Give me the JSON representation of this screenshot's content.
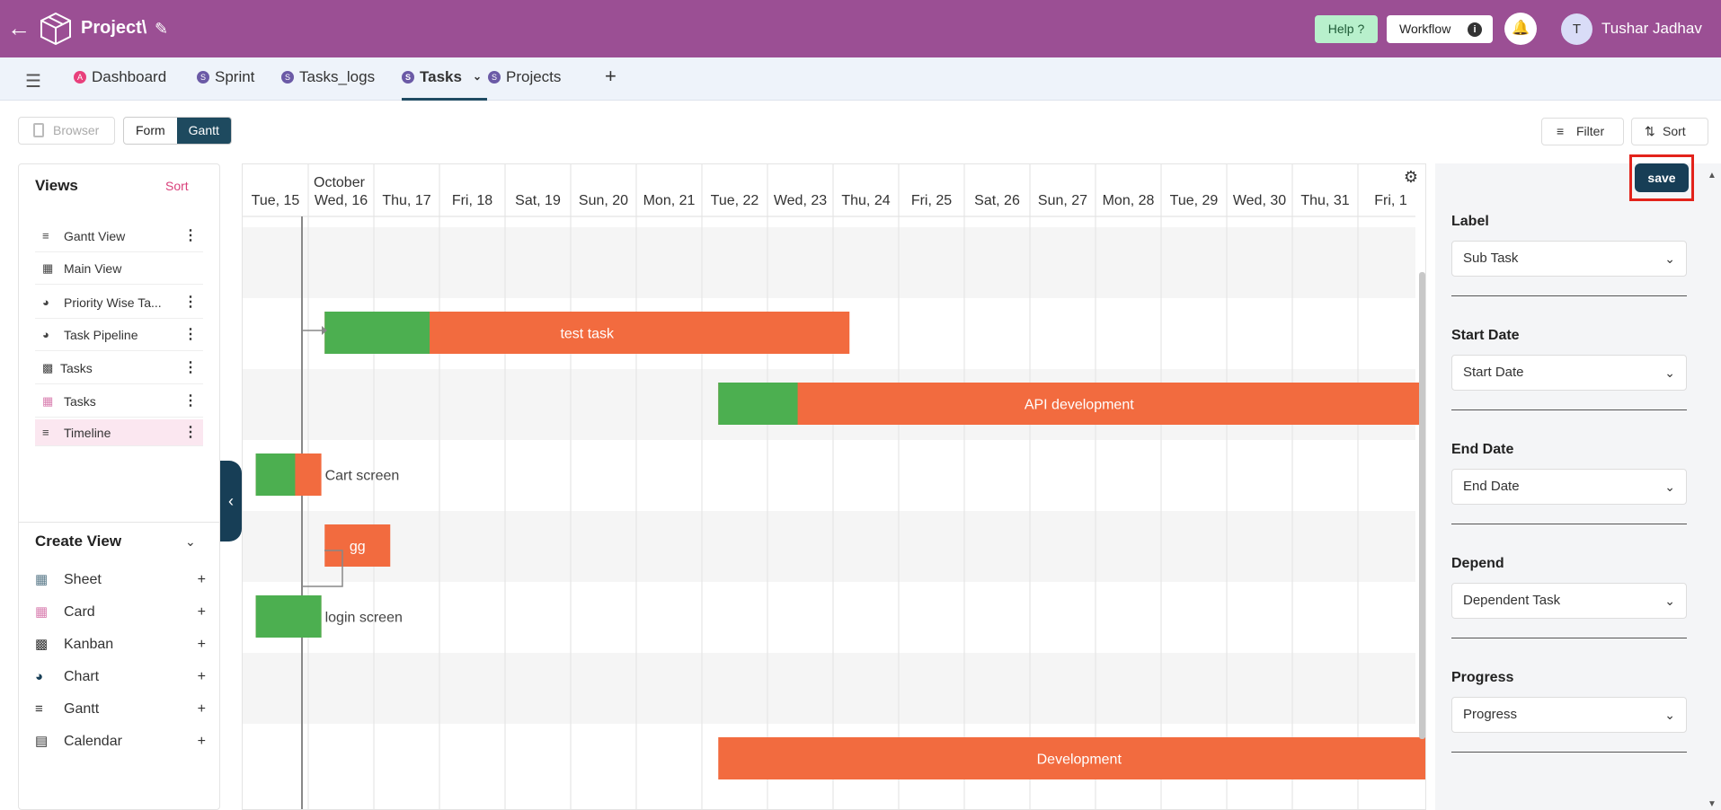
{
  "header": {
    "project_title": "Project\\",
    "help_label": "Help ?",
    "workflow_label": "Workflow",
    "user_initial": "T",
    "user_name": "Tushar Jadhav"
  },
  "tabs": [
    {
      "label": "Dashboard",
      "badge": "A",
      "badge_color": "#e8407c"
    },
    {
      "label": "Sprint",
      "badge": "S",
      "badge_color": "#6b5aa6"
    },
    {
      "label": "Tasks_logs",
      "badge": "S",
      "badge_color": "#6b5aa6"
    },
    {
      "label": "Tasks",
      "badge": "S",
      "badge_color": "#6b5aa6"
    },
    {
      "label": "Projects",
      "badge": "S",
      "badge_color": "#6b5aa6"
    }
  ],
  "toolbar": {
    "browser_label": "Browser",
    "form_label": "Form",
    "gantt_label": "Gantt",
    "filter_label": "Filter",
    "sort_label": "Sort"
  },
  "views": {
    "title": "Views",
    "sort_label": "Sort",
    "items": [
      {
        "label": "Gantt View",
        "icon": "gantt-icon"
      },
      {
        "label": "Main View",
        "icon": "grid-icon"
      },
      {
        "label": "Priority Wise Ta...",
        "icon": "chart-icon"
      },
      {
        "label": "Task Pipeline",
        "icon": "chart-icon"
      },
      {
        "label": "Tasks",
        "icon": "kanban-icon"
      },
      {
        "label": "Tasks",
        "icon": "card-icon"
      },
      {
        "label": "Timeline",
        "icon": "gantt-icon"
      }
    ]
  },
  "create_view": {
    "title": "Create View",
    "items": [
      {
        "label": "Sheet",
        "icon": "grid-icon"
      },
      {
        "label": "Card",
        "icon": "card-icon"
      },
      {
        "label": "Kanban",
        "icon": "kanban-icon"
      },
      {
        "label": "Chart",
        "icon": "chart-icon"
      },
      {
        "label": "Gantt",
        "icon": "gantt-icon"
      },
      {
        "label": "Calendar",
        "icon": "calendar-icon"
      }
    ]
  },
  "gantt": {
    "month": "October",
    "days": [
      "Tue, 15",
      "Wed, 16",
      "Thu, 17",
      "Fri, 18",
      "Sat, 19",
      "Sun, 20",
      "Mon, 21",
      "Tue, 22",
      "Wed, 23",
      "Thu, 24",
      "Fri, 25",
      "Sat, 26",
      "Sun, 27",
      "Mon, 28",
      "Tue, 29",
      "Wed, 30",
      "Thu, 31",
      "Fri, 1"
    ],
    "tasks": [
      {
        "label": "",
        "start_day": null,
        "duration_days": 0,
        "progress": 0,
        "label_outside": false
      },
      {
        "label": "test task",
        "start_day": 1.25,
        "duration_days": 8,
        "progress": 0.2,
        "label_outside": false
      },
      {
        "label": "API development",
        "start_day": 7.25,
        "duration_days": 11,
        "progress": 0.11,
        "label_outside": false
      },
      {
        "label": "Cart screen",
        "start_day": 0.2,
        "duration_days": 1,
        "progress": 0.6,
        "label_outside": true
      },
      {
        "label": "gg",
        "start_day": 1.25,
        "duration_days": 1,
        "progress": 0,
        "label_outside": false
      },
      {
        "label": "login screen",
        "start_day": 0.2,
        "duration_days": 1,
        "progress": 1,
        "label_outside": true
      },
      {
        "label": "",
        "start_day": null,
        "duration_days": 0,
        "progress": 0,
        "label_outside": false
      },
      {
        "label": "Development",
        "start_day": 7.25,
        "duration_days": 11,
        "progress": 0,
        "label_outside": false
      }
    ],
    "colors": {
      "progress": "#4caf50",
      "remaining": "#f26b3f"
    }
  },
  "panel": {
    "save_label": "save",
    "fields": [
      {
        "label": "Label",
        "value": "Sub Task"
      },
      {
        "label": "Start Date",
        "value": "Start Date"
      },
      {
        "label": "End Date",
        "value": "End Date"
      },
      {
        "label": "Depend",
        "value": "Dependent Task"
      },
      {
        "label": "Progress",
        "value": "Progress"
      }
    ]
  }
}
